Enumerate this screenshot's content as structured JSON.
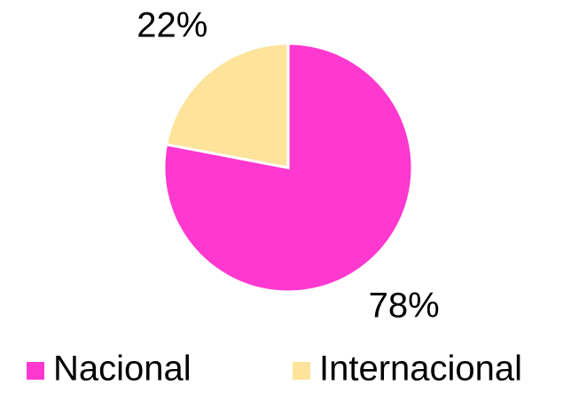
{
  "chart_data": {
    "type": "pie",
    "categories": [
      "Nacional",
      "Internacional"
    ],
    "values": [
      78,
      22
    ],
    "value_labels": [
      "78%",
      "22%"
    ],
    "colors": [
      "#ff38d0",
      "#fde49a"
    ],
    "legend": "bottom"
  }
}
